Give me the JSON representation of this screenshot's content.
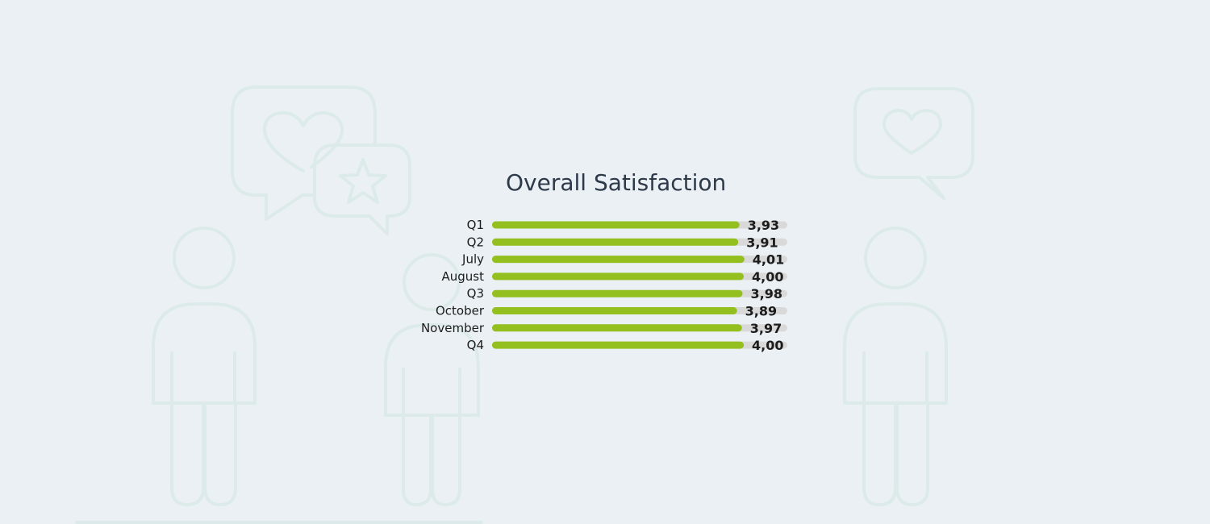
{
  "chart_data": {
    "type": "bar",
    "orientation": "horizontal",
    "title": "Overall Satisfaction",
    "categories": [
      "Q1",
      "Q2",
      "July",
      "August",
      "Q3",
      "October",
      "November",
      "Q4"
    ],
    "values": [
      3.93,
      3.91,
      4.01,
      4.0,
      3.98,
      3.89,
      3.97,
      4.0
    ],
    "value_labels": [
      "3,93",
      "3,91",
      "4,01",
      "4,00",
      "3,98",
      "3,89",
      "3,97",
      "4,00"
    ],
    "xlim": [
      0,
      5
    ],
    "xlabel": "",
    "ylabel": "",
    "grid": false,
    "legend": "none",
    "colors": {
      "bar": "#93c01f",
      "track": "#d9d9d9"
    }
  },
  "background": {
    "icons": [
      "person-icon",
      "person-icon",
      "person-icon",
      "heart-speech-bubble-icon",
      "star-speech-bubble-icon",
      "heart-speech-bubble-icon"
    ],
    "color": "#dcebea"
  }
}
